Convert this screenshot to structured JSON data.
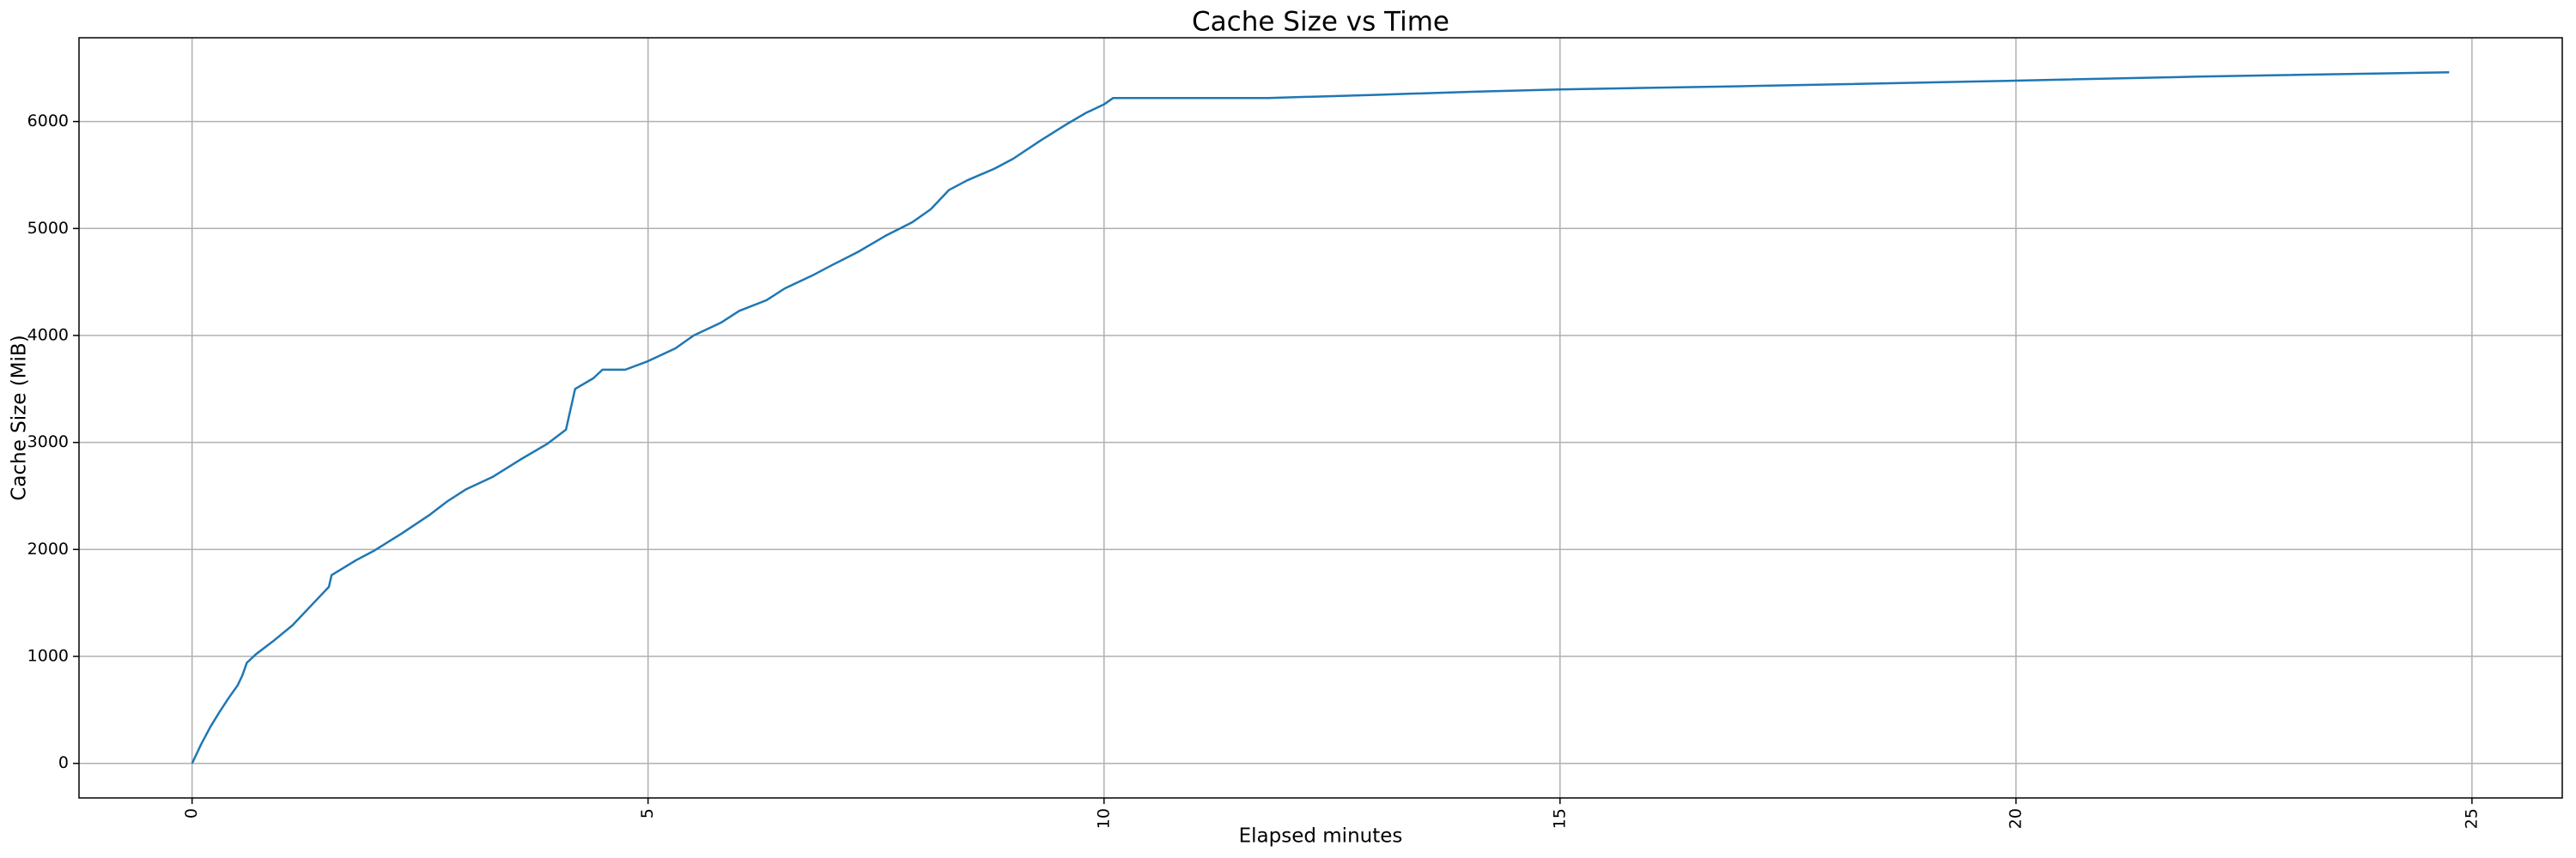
{
  "chart_data": {
    "type": "line",
    "title": "Cache Size vs Time",
    "x_label": "Elapsed minutes",
    "y_label": "Cache Size (MiB)",
    "x": [
      0,
      0.1,
      0.2,
      0.3,
      0.4,
      0.5,
      0.55,
      0.6,
      0.7,
      0.9,
      1.1,
      1.3,
      1.5,
      1.53,
      1.8,
      2.0,
      2.3,
      2.6,
      2.8,
      3.0,
      3.3,
      3.6,
      3.9,
      4.1,
      4.15,
      4.2,
      4.4,
      4.5,
      4.75,
      5.0,
      5.3,
      5.5,
      5.8,
      6.0,
      6.3,
      6.5,
      6.8,
      7.0,
      7.3,
      7.6,
      7.9,
      8.1,
      8.3,
      8.5,
      8.8,
      9.0,
      9.3,
      9.6,
      9.8,
      10.0,
      10.1,
      11.8,
      13.0,
      14.1,
      15.0,
      17.0,
      19.9,
      22.0,
      24.75
    ],
    "series": [
      {
        "name": "Cache Size",
        "color": "#1f77b4",
        "values": [
          0,
          180,
          340,
          480,
          610,
          730,
          820,
          940,
          1020,
          1150,
          1290,
          1470,
          1650,
          1760,
          1900,
          1990,
          2150,
          2320,
          2450,
          2560,
          2680,
          2840,
          2990,
          3120,
          3310,
          3500,
          3600,
          3680,
          3680,
          3760,
          3880,
          4000,
          4120,
          4230,
          4330,
          4440,
          4560,
          4650,
          4780,
          4930,
          5060,
          5180,
          5360,
          5450,
          5560,
          5650,
          5820,
          5980,
          6080,
          6160,
          6220,
          6220,
          6250,
          6280,
          6300,
          6330,
          6380,
          6420,
          6460
        ]
      }
    ],
    "xlim": [
      -1.24,
      25.99
    ],
    "ylim": [
      -323,
      6783
    ],
    "xticks": [
      0,
      5,
      10,
      15,
      20,
      25
    ],
    "yticks": [
      0,
      1000,
      2000,
      3000,
      4000,
      5000,
      6000
    ],
    "grid": true
  }
}
